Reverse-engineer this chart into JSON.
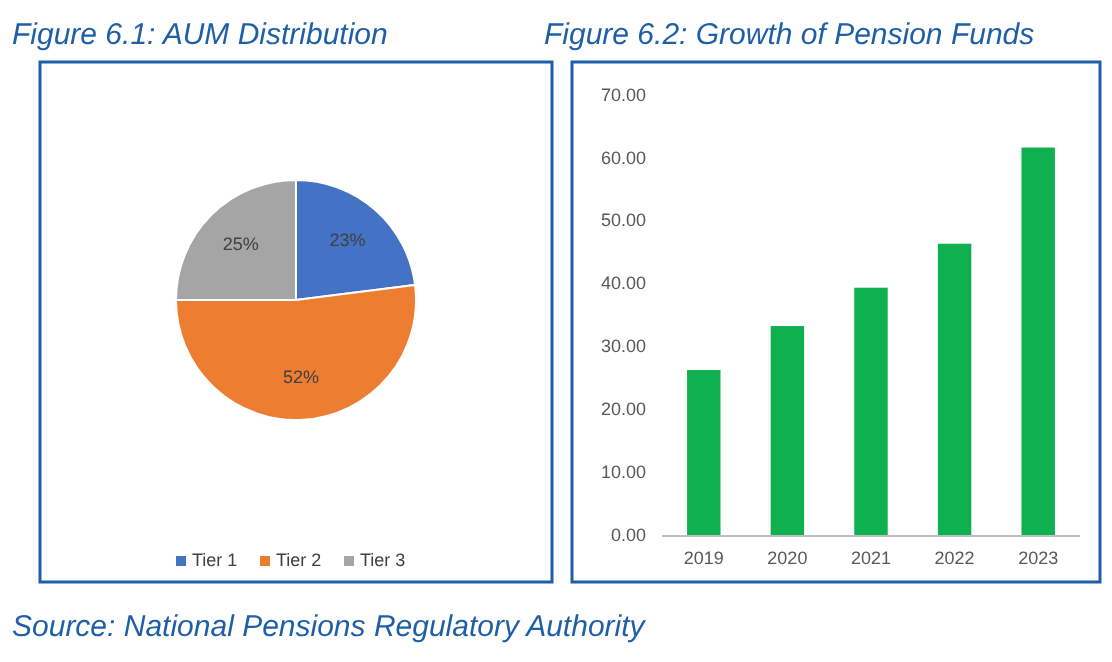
{
  "chart_data": [
    {
      "type": "pie",
      "title": "Figure 6.1: AUM Distribution",
      "categories": [
        "Tier 1",
        "Tier 2",
        "Tier 3"
      ],
      "values": [
        23,
        52,
        25
      ],
      "colors": [
        "#4472c4",
        "#ed7d31",
        "#a5a5a5"
      ],
      "value_labels": [
        "23%",
        "52%",
        "25%"
      ],
      "legend": "bottom"
    },
    {
      "type": "bar",
      "title": "Figure 6.2: Growth of Pension Funds",
      "categories": [
        "2019",
        "2020",
        "2021",
        "2022",
        "2023"
      ],
      "values": [
        26.4,
        33.4,
        39.5,
        46.5,
        61.8
      ],
      "color": "#0fb04f",
      "ylim": [
        0,
        70
      ],
      "yticks": [
        {
          "value": 0,
          "label": "0.00"
        },
        {
          "value": 10,
          "label": "10.00"
        },
        {
          "value": 20,
          "label": "20.00"
        },
        {
          "value": 30,
          "label": "30.00"
        },
        {
          "value": 40,
          "label": "40.00"
        },
        {
          "value": 50,
          "label": "50.00"
        },
        {
          "value": 60,
          "label": "60.00"
        },
        {
          "value": 70,
          "label": "70.00"
        }
      ],
      "annotations": [
        "Source: National Pensions Regulatory Authority"
      ]
    }
  ]
}
